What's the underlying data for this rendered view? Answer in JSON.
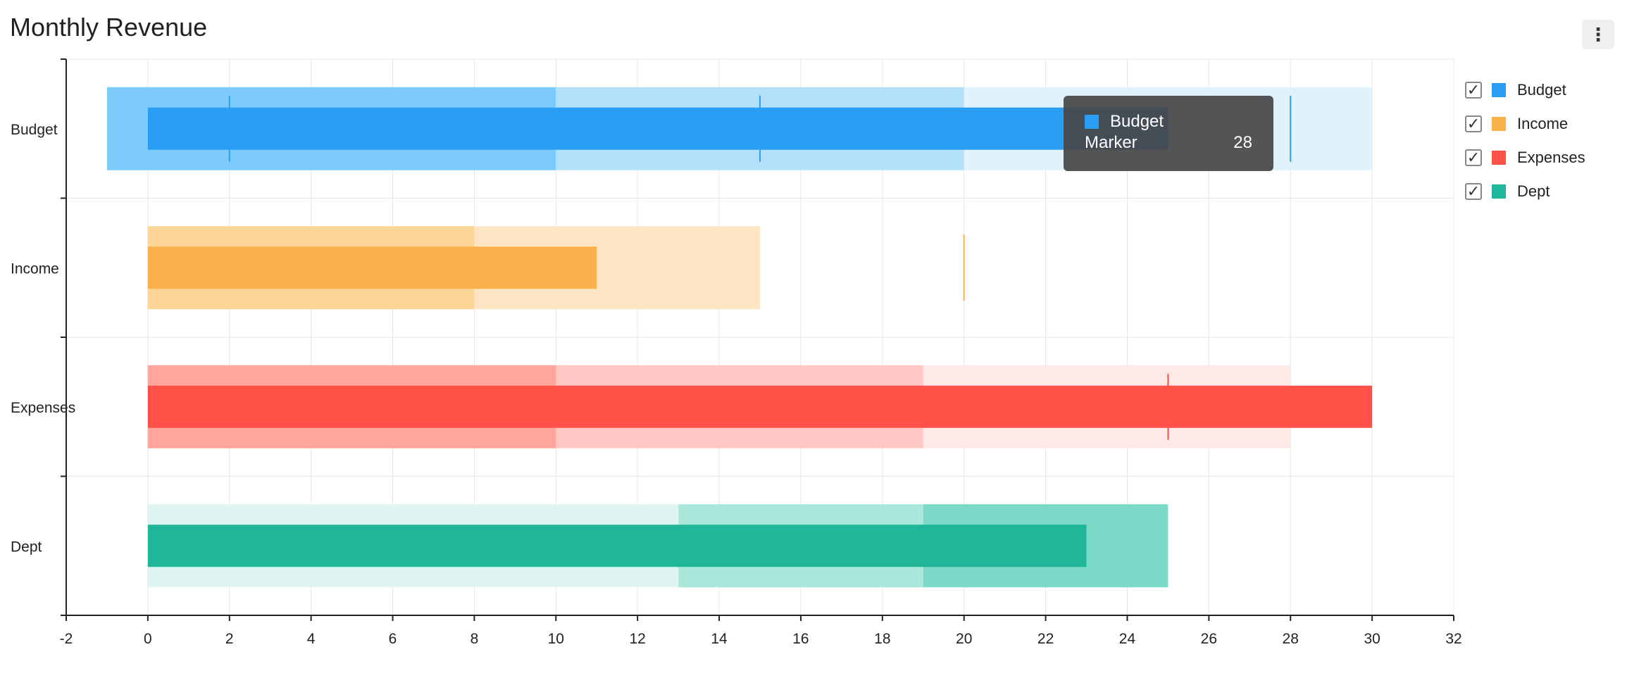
{
  "title": "Monthly Revenue",
  "menu": {
    "icon": "more-vertical-icon",
    "label": "⋮"
  },
  "legend": [
    {
      "label": "Budget",
      "color": "#2a9df4",
      "checked": true
    },
    {
      "label": "Income",
      "color": "#fbb14b",
      "checked": true
    },
    {
      "label": "Expenses",
      "color": "#ff5148",
      "checked": true
    },
    {
      "label": "Dept",
      "color": "#20b699",
      "checked": true
    }
  ],
  "tooltip": {
    "series": "Budget",
    "label": "Marker",
    "value": "28"
  },
  "chart_data": {
    "type": "bullet",
    "orientation": "horizontal",
    "xlim": [
      -2,
      32
    ],
    "xticks": [
      -2,
      0,
      2,
      4,
      6,
      8,
      10,
      12,
      14,
      16,
      18,
      20,
      22,
      24,
      26,
      28,
      30,
      32
    ],
    "grid": true,
    "legend_position": "right",
    "categories": [
      "Budget",
      "Income",
      "Expenses",
      "Dept"
    ],
    "series": [
      {
        "name": "Budget",
        "color": "#2a9df4",
        "ranges": [
          [
            -1,
            10
          ],
          [
            10,
            20
          ],
          [
            20,
            30
          ]
        ],
        "range_colors": [
          "#7dcbfa",
          "#b3e0fb",
          "#e0f2fc"
        ],
        "value": 25,
        "markers": [
          2,
          15,
          28
        ]
      },
      {
        "name": "Income",
        "color": "#fbb14b",
        "ranges": [
          [
            0,
            8
          ],
          [
            8,
            15
          ]
        ],
        "range_colors": [
          "#fdd597",
          "#fee6c4"
        ],
        "value": 11,
        "markers": [
          20
        ]
      },
      {
        "name": "Expenses",
        "color": "#ff5148",
        "ranges": [
          [
            0,
            10
          ],
          [
            10,
            19
          ],
          [
            19,
            28
          ]
        ],
        "range_colors": [
          "#ffa59d",
          "#ffc7c3",
          "#ffe9e8"
        ],
        "value": 30,
        "markers": [
          25
        ]
      },
      {
        "name": "Dept",
        "color": "#20b699",
        "ranges": [
          [
            0,
            13
          ],
          [
            13,
            19
          ],
          [
            19,
            25
          ]
        ],
        "range_colors": [
          "#e0f5f1",
          "#aae8db",
          "#7ad9c7"
        ],
        "value": 23,
        "markers": []
      }
    ]
  }
}
